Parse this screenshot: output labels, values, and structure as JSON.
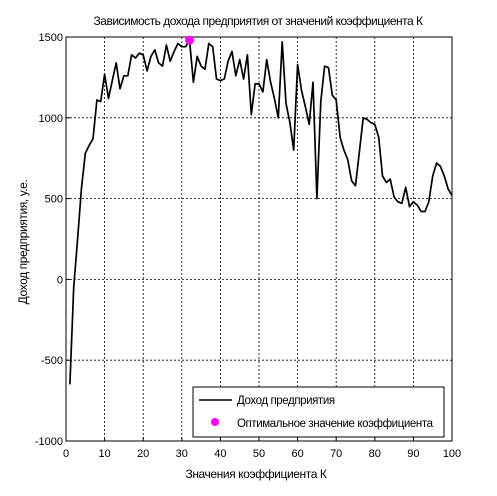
{
  "chart_data": {
    "type": "line",
    "title": "Зависимость дохода предприятия от значений коэффициента К",
    "xlabel": "Значения коэффициента К",
    "ylabel": "Доход предприятия, у.е.",
    "xlim": [
      0,
      100
    ],
    "ylim": [
      -1000,
      1500
    ],
    "xticks": [
      0,
      10,
      20,
      30,
      40,
      50,
      60,
      70,
      80,
      90,
      100
    ],
    "yticks": [
      -1000,
      -500,
      0,
      500,
      1000,
      1500
    ],
    "grid": true,
    "legend_position": "bottom-right",
    "series": [
      {
        "name": "Доход предприятия",
        "color": "#000000",
        "style": "line",
        "x": [
          1,
          2,
          3,
          4,
          5,
          6,
          7,
          8,
          9,
          10,
          11,
          12,
          13,
          14,
          15,
          16,
          17,
          18,
          19,
          20,
          21,
          22,
          23,
          24,
          25,
          26,
          27,
          28,
          29,
          30,
          31,
          32,
          33,
          34,
          35,
          36,
          37,
          38,
          39,
          40,
          41,
          42,
          43,
          44,
          45,
          46,
          47,
          48,
          49,
          50,
          51,
          52,
          53,
          54,
          55,
          56,
          57,
          58,
          59,
          60,
          61,
          62,
          63,
          64,
          65,
          66,
          67,
          68,
          69,
          70,
          71,
          72,
          73,
          74,
          75,
          76,
          77,
          78,
          79,
          80,
          81,
          82,
          83,
          84,
          85,
          86,
          87,
          88,
          89,
          90,
          91,
          92,
          93,
          94,
          95,
          96,
          97,
          98,
          99,
          100
        ],
        "y": [
          -650,
          -50,
          250,
          560,
          780,
          830,
          870,
          1110,
          1100,
          1270,
          1120,
          1230,
          1340,
          1180,
          1260,
          1260,
          1390,
          1370,
          1400,
          1390,
          1290,
          1380,
          1420,
          1340,
          1320,
          1450,
          1350,
          1410,
          1460,
          1440,
          1440,
          1480,
          1220,
          1380,
          1320,
          1300,
          1460,
          1440,
          1240,
          1230,
          1240,
          1350,
          1410,
          1260,
          1360,
          1240,
          1390,
          1020,
          1210,
          1210,
          1160,
          1360,
          1220,
          1120,
          1000,
          1470,
          1090,
          970,
          800,
          1330,
          1170,
          1070,
          960,
          1220,
          500,
          1100,
          1320,
          1310,
          1140,
          1110,
          880,
          800,
          740,
          610,
          580,
          790,
          1000,
          990,
          970,
          960,
          880,
          640,
          600,
          620,
          510,
          480,
          470,
          570,
          450,
          480,
          460,
          420,
          420,
          480,
          640,
          720,
          700,
          640,
          560,
          520
        ]
      },
      {
        "name": "Оптимальное значение коэффициента",
        "color": "#ff00ff",
        "style": "marker",
        "x": [
          32
        ],
        "y": [
          1480
        ]
      }
    ]
  }
}
